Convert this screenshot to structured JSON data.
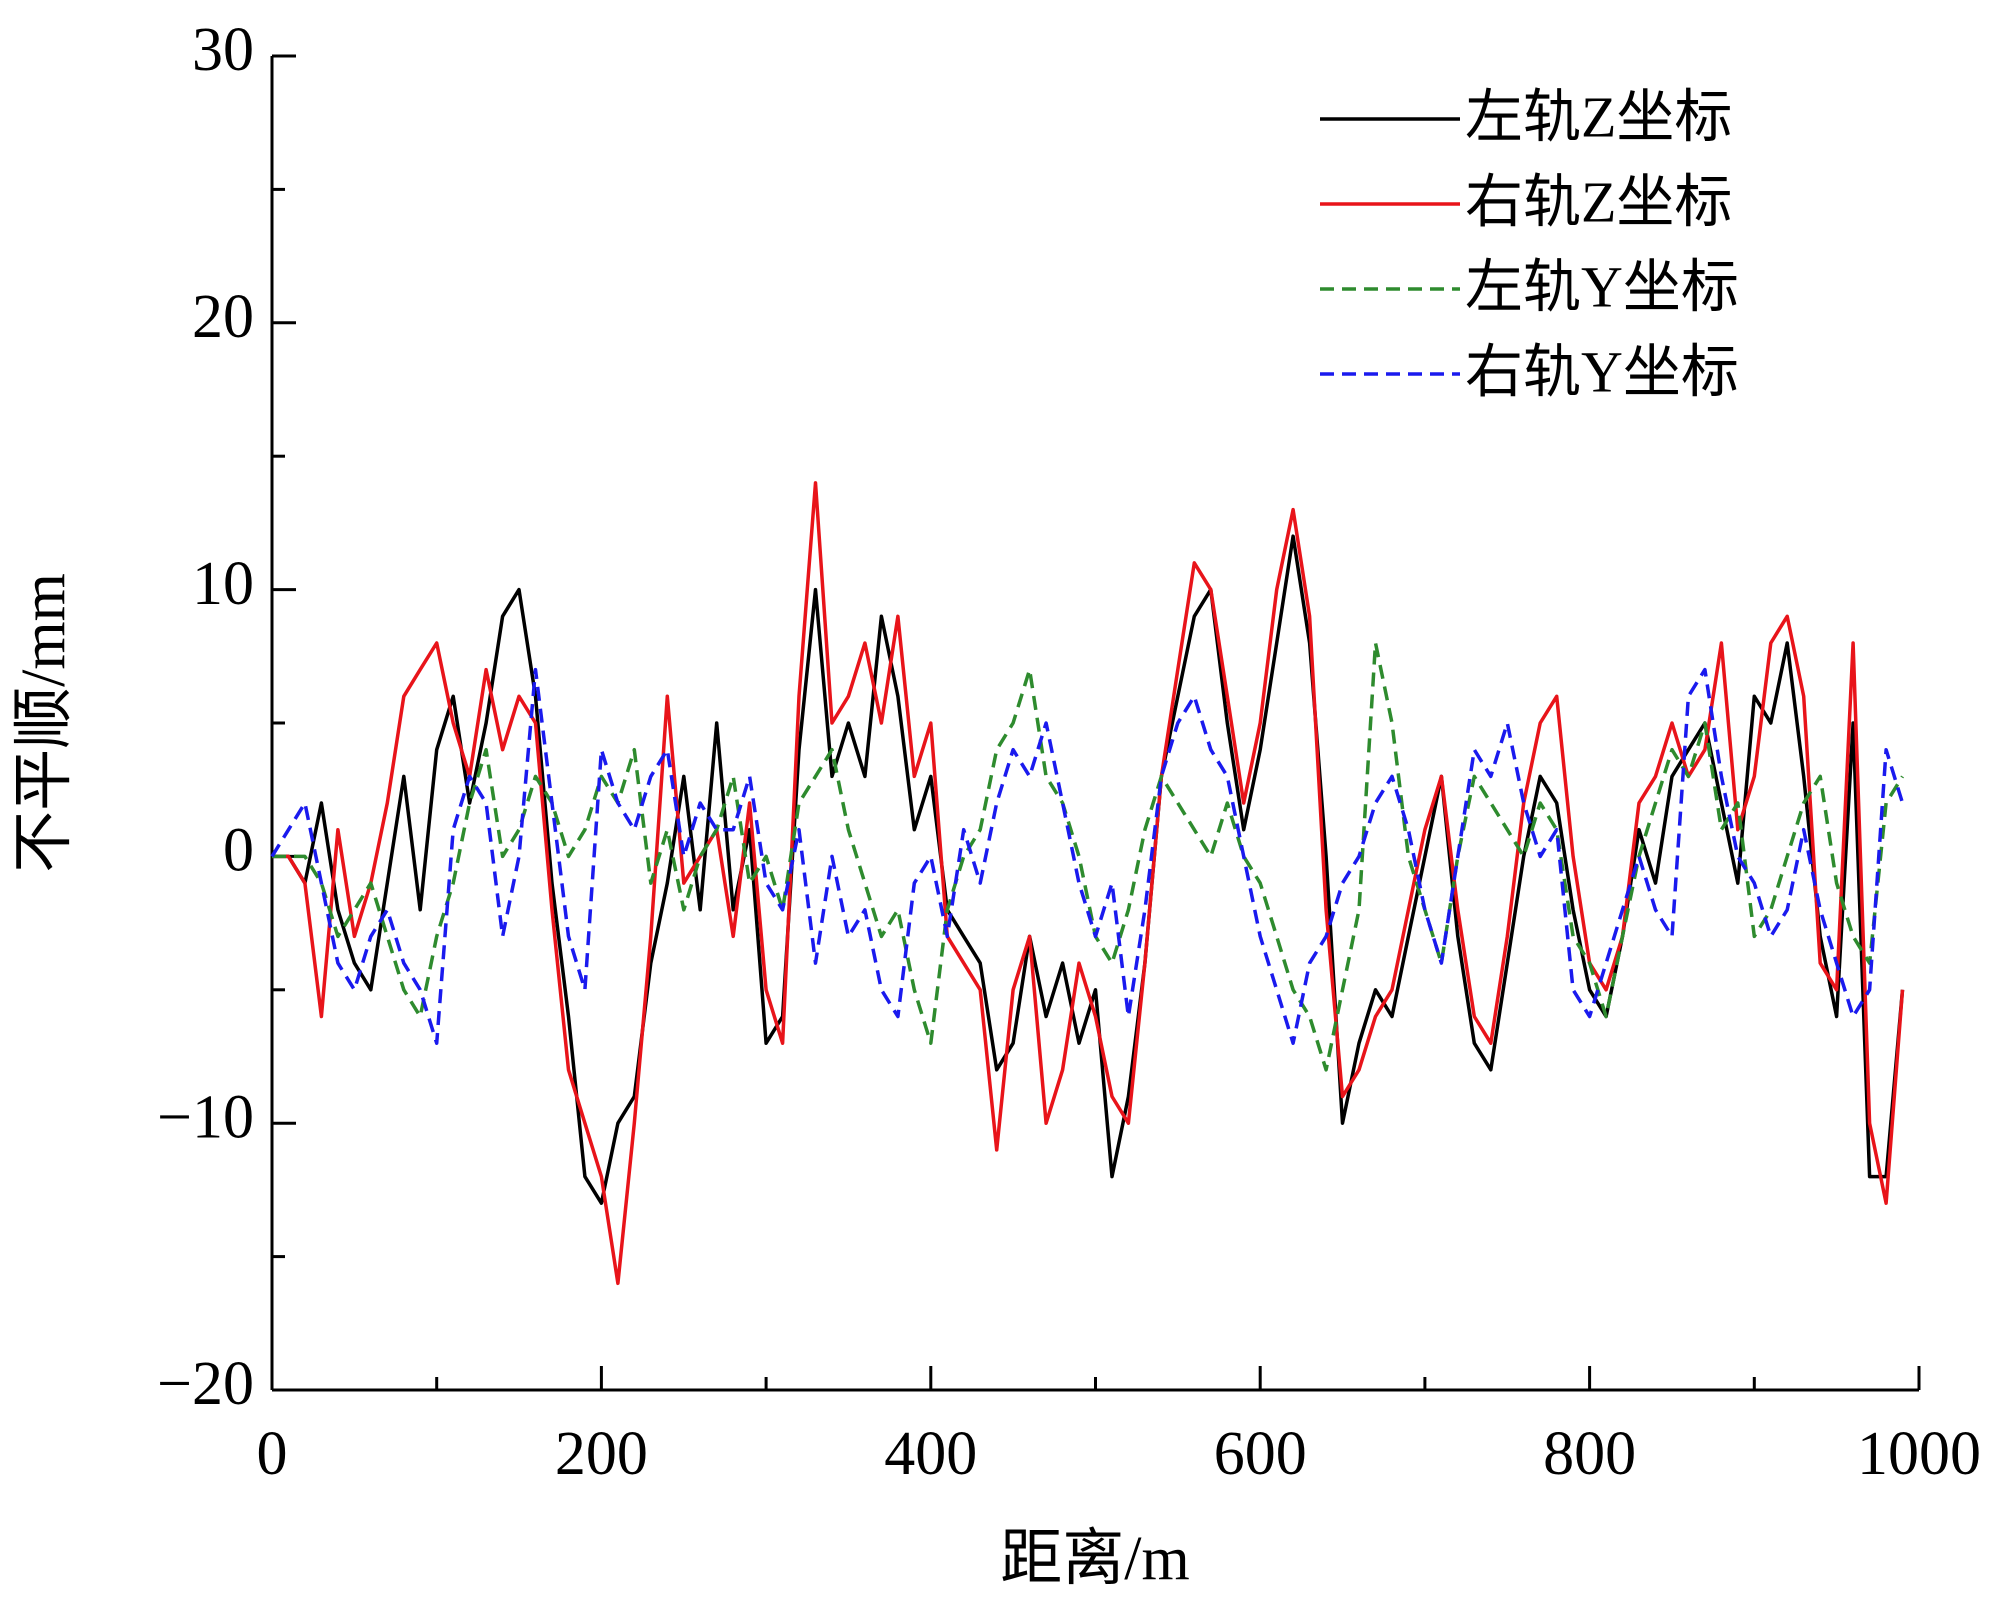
{
  "chart_data": {
    "type": "line",
    "x_label": "距离/m",
    "y_label": "不平顺/mm",
    "xlim": [
      0,
      1000
    ],
    "ylim": [
      -20,
      30
    ],
    "xticks": [
      0,
      200,
      400,
      600,
      800,
      1000
    ],
    "xminor_ticks": [
      100,
      300,
      500,
      700,
      900
    ],
    "yticks": [
      {
        "value": -20,
        "label": "−20"
      },
      {
        "value": -10,
        "label": "−10"
      },
      0,
      10,
      20,
      30
    ],
    "yminor_ticks": [
      -15,
      -5,
      5,
      15,
      25
    ],
    "legend": "upper-right",
    "x": [
      0,
      10,
      20,
      30,
      40,
      50,
      60,
      70,
      80,
      90,
      100,
      110,
      120,
      130,
      140,
      150,
      160,
      170,
      180,
      190,
      200,
      210,
      220,
      230,
      240,
      250,
      260,
      270,
      280,
      290,
      300,
      310,
      320,
      330,
      340,
      350,
      360,
      370,
      380,
      390,
      400,
      410,
      420,
      430,
      440,
      450,
      460,
      470,
      480,
      490,
      500,
      510,
      520,
      530,
      540,
      550,
      560,
      570,
      580,
      590,
      600,
      610,
      620,
      630,
      640,
      650,
      660,
      670,
      680,
      690,
      700,
      710,
      720,
      730,
      740,
      750,
      760,
      770,
      780,
      790,
      800,
      810,
      820,
      830,
      840,
      850,
      860,
      870,
      880,
      890,
      900,
      910,
      920,
      930,
      940,
      950,
      960,
      970,
      980,
      990
    ],
    "series": [
      {
        "name": "左轨Z坐标",
        "color": "#000000",
        "style": "solid",
        "values": [
          0,
          0,
          -1,
          2,
          -2,
          -4,
          -5,
          -1,
          3,
          -2,
          4,
          6,
          2,
          5,
          9,
          10,
          6,
          -1,
          -6,
          -12,
          -13,
          -10,
          -9,
          -4,
          -1,
          3,
          -2,
          5,
          -2,
          1,
          -7,
          -6,
          4,
          10,
          3,
          5,
          3,
          9,
          6,
          1,
          3,
          -2,
          -3,
          -4,
          -8,
          -7,
          -3,
          -6,
          -4,
          -7,
          -5,
          -12,
          -9,
          -4,
          3,
          6,
          9,
          10,
          5,
          1,
          4,
          8,
          12,
          8,
          0,
          -10,
          -7,
          -5,
          -6,
          -3,
          0,
          3,
          -3,
          -7,
          -8,
          -4,
          0,
          3,
          2,
          -2,
          -5,
          -6,
          -3,
          1,
          -1,
          3,
          4,
          5,
          2,
          -1,
          6,
          5,
          8,
          3,
          -3,
          -6,
          5,
          -12,
          -12,
          -5
        ]
      },
      {
        "name": "右轨Z坐标",
        "color": "#e8141a",
        "style": "solid",
        "values": [
          0,
          0,
          -1,
          -6,
          1,
          -3,
          -1,
          2,
          6,
          7,
          8,
          5,
          3,
          7,
          4,
          6,
          5,
          -2,
          -8,
          -10,
          -12,
          -16,
          -10,
          -3,
          6,
          -1,
          0,
          1,
          -3,
          2,
          -5,
          -7,
          6,
          14,
          5,
          6,
          8,
          5,
          9,
          3,
          5,
          -3,
          -4,
          -5,
          -11,
          -5,
          -3,
          -10,
          -8,
          -4,
          -6,
          -9,
          -10,
          -4,
          3,
          7,
          11,
          10,
          6,
          2,
          5,
          10,
          13,
          9,
          -2,
          -9,
          -8,
          -6,
          -5,
          -2,
          1,
          3,
          -2,
          -6,
          -7,
          -3,
          2,
          5,
          6,
          0,
          -4,
          -5,
          -3,
          2,
          3,
          5,
          3,
          4,
          8,
          1,
          3,
          8,
          9,
          6,
          -4,
          -5,
          8,
          -10,
          -13,
          -5
        ]
      },
      {
        "name": "左轨Y坐标",
        "color": "#2e8b2e",
        "style": "dashed",
        "values": [
          0,
          0,
          0,
          -1,
          -3,
          -2,
          -1,
          -3,
          -5,
          -6,
          -3,
          -1,
          2,
          4,
          0,
          1,
          3,
          2,
          0,
          1,
          3,
          2,
          4,
          -1,
          1,
          -2,
          0,
          1,
          3,
          -1,
          0,
          -2,
          2,
          3,
          4,
          1,
          -1,
          -3,
          -2,
          -5,
          -7,
          -2,
          0,
          1,
          4,
          5,
          7,
          3,
          2,
          0,
          -3,
          -4,
          -2,
          1,
          3,
          2,
          1,
          0,
          2,
          0,
          -1,
          -3,
          -5,
          -6,
          -8,
          -5,
          -2,
          8,
          5,
          0,
          -2,
          -4,
          0,
          3,
          2,
          1,
          0,
          2,
          1,
          -3,
          -4,
          -6,
          -3,
          0,
          2,
          4,
          3,
          5,
          1,
          2,
          -3,
          -2,
          0,
          2,
          3,
          -1,
          -3,
          -4,
          2,
          3
        ]
      },
      {
        "name": "右轨Y坐标",
        "color": "#1a1aee",
        "style": "dashed",
        "values": [
          0,
          1,
          2,
          -1,
          -4,
          -5,
          -3,
          -2,
          -4,
          -5,
          -7,
          1,
          3,
          2,
          -3,
          0,
          7,
          2,
          -3,
          -5,
          4,
          2,
          1,
          3,
          4,
          0,
          2,
          1,
          1,
          3,
          -1,
          -2,
          1,
          -4,
          0,
          -3,
          -2,
          -5,
          -6,
          -1,
          0,
          -3,
          1,
          -1,
          2,
          4,
          3,
          5,
          2,
          -1,
          -3,
          -1,
          -6,
          -2,
          3,
          5,
          6,
          4,
          3,
          0,
          -3,
          -5,
          -7,
          -4,
          -3,
          -1,
          0,
          2,
          3,
          1,
          -2,
          -4,
          0,
          4,
          3,
          5,
          2,
          0,
          1,
          -5,
          -6,
          -4,
          -2,
          0,
          -2,
          -3,
          6,
          7,
          3,
          0,
          -1,
          -3,
          -2,
          1,
          -2,
          -4,
          -6,
          -5,
          4,
          2
        ]
      }
    ]
  }
}
